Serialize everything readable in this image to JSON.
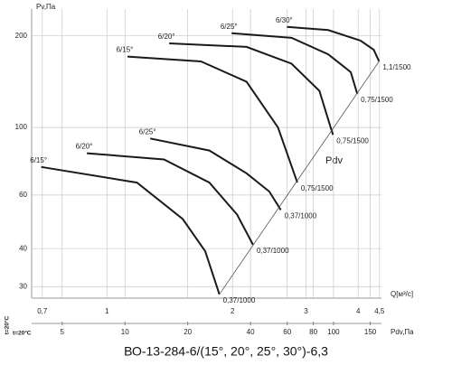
{
  "chart_data": {
    "type": "line",
    "title": "ВО-13-284-6/(15°, 20°, 25°, 30°)-6,3",
    "y_label": "Pv,Па",
    "x_label": "Q[м³/с]",
    "x2_label": "Pdv,Па",
    "annotation": "Pdv",
    "temperature_labels": [
      "t=20°C",
      "t=20°C"
    ],
    "log_x": true,
    "log_y": true,
    "grid": true,
    "xlim": [
      0.66,
      4.55
    ],
    "xticks": [
      {
        "value": 0.7,
        "label": "0,7"
      },
      1,
      2,
      3,
      4,
      {
        "value": 4.5,
        "label": "4,5"
      }
    ],
    "x2lim": [
      3.57,
      169.8
    ],
    "x2ticks": [
      5,
      10,
      20,
      40,
      60,
      80,
      100,
      150
    ],
    "ylim": [
      27.5,
      245
    ],
    "yticks": [
      30,
      40,
      60,
      100,
      200
    ],
    "series": [
      {
        "start_label": "6/15°",
        "end_label": "0,37/1000",
        "color": "#1a1a1a",
        "x": [
          0.696,
          1.18,
          1.52,
          1.72,
          1.86
        ],
        "values": [
          74.2,
          65.9,
          50,
          39.2,
          28.3
        ]
      },
      {
        "start_label": "6/20°",
        "end_label": "0,37/1000",
        "color": "#1a1a1a",
        "x": [
          0.895,
          1.37,
          1.76,
          2.05,
          2.24
        ],
        "values": [
          82.3,
          78.5,
          65.9,
          51.8,
          41.2
        ]
      },
      {
        "start_label": "6/25°",
        "end_label": "0,37/1000",
        "color": "#1a1a1a",
        "x": [
          1.27,
          1.76,
          2.16,
          2.45,
          2.61
        ],
        "values": [
          92,
          84,
          70.7,
          61.6,
          53.6
        ]
      },
      {
        "start_label": "6/15°",
        "end_label": "0,75/1500",
        "color": "#1a1a1a",
        "x": [
          1.12,
          1.68,
          2.16,
          2.57,
          2.86
        ],
        "values": [
          171,
          164.8,
          141.4,
          100,
          65.9
        ]
      },
      {
        "start_label": "6/20°",
        "end_label": "0,75/1500",
        "color": "#1a1a1a",
        "x": [
          1.41,
          2.16,
          2.77,
          3.23,
          3.48
        ],
        "values": [
          189,
          184,
          162,
          132,
          94.6
        ]
      },
      {
        "start_label": "6/25°",
        "end_label": "0,75/1500",
        "color": "#1a1a1a",
        "x": [
          1.99,
          2.77,
          3.39,
          3.84,
          3.98
        ],
        "values": [
          204,
          197,
          174,
          152,
          129
        ]
      },
      {
        "start_label": "6/30°",
        "end_label": "1,1/1500",
        "color": "#1a1a1a",
        "x": [
          2.7,
          3.39,
          4.05,
          4.36,
          4.49
        ],
        "values": [
          214,
          209,
          193,
          180,
          165
        ]
      }
    ]
  }
}
